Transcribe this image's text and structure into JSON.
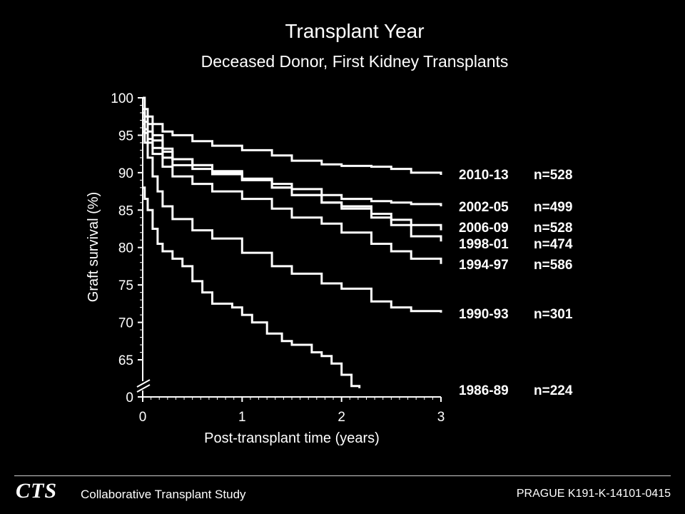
{
  "header": {
    "title": "Transplant Year",
    "subtitle": "Deceased Donor, First Kidney Transplants"
  },
  "footer": {
    "logo_text": "CTS",
    "organization": "Collaborative Transplant Study",
    "slide_ref": "PRAGUE  K191-K-14101-0415"
  },
  "colors": {
    "background": "#000000",
    "foreground": "#ffffff"
  },
  "chart_data": {
    "type": "line",
    "title": "Transplant Year",
    "subtitle": "Deceased Donor, First Kidney Transplants",
    "xlabel": "Post-transplant time (years)",
    "ylabel": "Graft survival (%)",
    "xlim": [
      0,
      3
    ],
    "ylim": [
      60,
      100
    ],
    "axis_break": "y axis broken between 0 and 65",
    "x_ticks": [
      "0",
      "1",
      "2",
      "3"
    ],
    "y_ticks": [
      "100",
      "95",
      "90",
      "85",
      "80",
      "75",
      "70",
      "65",
      "0"
    ],
    "legend_placement": "right, labels at line ends",
    "grid": false,
    "series": [
      {
        "name": "2010-13",
        "n": "n=528",
        "x": [
          0,
          0.02,
          0.05,
          0.1,
          0.2,
          0.3,
          0.5,
          0.7,
          1.0,
          1.3,
          1.5,
          1.8,
          2.0,
          2.3,
          2.5,
          2.7,
          3.0
        ],
        "y": [
          100,
          98.5,
          97.5,
          96.5,
          95.5,
          95,
          94.2,
          93.6,
          93,
          92.3,
          91.6,
          91.1,
          90.9,
          90.8,
          90.5,
          90,
          89.7
        ]
      },
      {
        "name": "2002-05",
        "n": "n=499",
        "x": [
          0,
          0.02,
          0.05,
          0.1,
          0.2,
          0.3,
          0.5,
          0.7,
          1.0,
          1.3,
          1.5,
          1.8,
          2.0,
          2.3,
          2.5,
          2.7,
          3.0
        ],
        "y": [
          98,
          96.8,
          95.5,
          94.3,
          92.8,
          91.8,
          91,
          90,
          89.2,
          88.5,
          87.8,
          87,
          86.5,
          86.2,
          86,
          85.8,
          85.5
        ]
      },
      {
        "name": "2006-09",
        "n": "n=528",
        "x": [
          0,
          0.02,
          0.05,
          0.1,
          0.2,
          0.3,
          0.5,
          0.7,
          1.0,
          1.3,
          1.5,
          1.8,
          2.0,
          2.3,
          2.5,
          2.7,
          3.0
        ],
        "y": [
          98.5,
          97.5,
          96.5,
          95,
          93.2,
          91.8,
          91,
          90.2,
          89,
          88,
          87,
          86,
          85.5,
          84.5,
          83.7,
          83,
          82.3
        ]
      },
      {
        "name": "1998-01",
        "n": "n=474",
        "x": [
          0,
          0.02,
          0.05,
          0.1,
          0.2,
          0.3,
          0.5,
          0.7,
          1.0,
          1.3,
          1.5,
          1.8,
          2.0,
          2.3,
          2.5,
          2.7,
          3.0
        ],
        "y": [
          97,
          95.8,
          94.5,
          93.3,
          92,
          91,
          90.5,
          89.8,
          89,
          88,
          87,
          86,
          85.2,
          84,
          83,
          81.5,
          80.8
        ]
      },
      {
        "name": "1994-97",
        "n": "n=586",
        "x": [
          0,
          0.02,
          0.05,
          0.1,
          0.2,
          0.3,
          0.5,
          0.7,
          1.0,
          1.3,
          1.5,
          1.8,
          2.0,
          2.3,
          2.5,
          2.7,
          3.0
        ],
        "y": [
          96.5,
          95.3,
          94,
          92.5,
          90.8,
          89.5,
          88.5,
          87.5,
          86.5,
          85.2,
          84,
          83.2,
          82,
          80.5,
          79.5,
          78.5,
          77.8
        ]
      },
      {
        "name": "1990-93",
        "n": "n=301",
        "x": [
          0,
          0.02,
          0.05,
          0.1,
          0.15,
          0.2,
          0.3,
          0.5,
          0.7,
          1.0,
          1.3,
          1.5,
          1.8,
          2.0,
          2.3,
          2.5,
          2.7,
          3.0
        ],
        "y": [
          95.5,
          94,
          92,
          89.5,
          87.5,
          85.5,
          83.8,
          82.3,
          81.2,
          79.3,
          77.5,
          76.5,
          75.2,
          74.5,
          72.8,
          72,
          71.5,
          71.3
        ]
      },
      {
        "name": "1986-89",
        "n": "n=224",
        "x": [
          0,
          0.02,
          0.05,
          0.1,
          0.15,
          0.2,
          0.3,
          0.4,
          0.5,
          0.6,
          0.7,
          0.9,
          1.0,
          1.1,
          1.25,
          1.4,
          1.5,
          1.7,
          1.8,
          1.9,
          2.0,
          2.1,
          2.18
        ],
        "y": [
          88,
          86.5,
          85,
          82.5,
          80.5,
          79.5,
          78.5,
          77.5,
          75.5,
          74,
          72.5,
          72,
          71,
          70,
          68.5,
          67.5,
          67,
          66,
          65.5,
          64.5,
          63,
          61.5,
          61.2
        ]
      }
    ]
  }
}
